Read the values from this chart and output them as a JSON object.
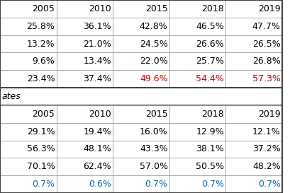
{
  "table1_header": [
    "2005",
    "2010",
    "2015",
    "2018",
    "2019"
  ],
  "table1_rows": [
    [
      "25.8%",
      "36.1%",
      "42.8%",
      "46.5%",
      "47.7%"
    ],
    [
      "13.2%",
      "21.0%",
      "24.5%",
      "26.6%",
      "26.5%"
    ],
    [
      "9.6%",
      "13.4%",
      "22.0%",
      "25.7%",
      "26.8%"
    ],
    [
      "23.4%",
      "37.4%",
      "49.6%",
      "54.4%",
      "57.3%"
    ]
  ],
  "table1_row4_red_cols": [
    2,
    3,
    4
  ],
  "section_label": "ates",
  "table2_header": [
    "2005",
    "2010",
    "2015",
    "2018",
    "2019"
  ],
  "table2_rows": [
    [
      "29.1%",
      "19.4%",
      "16.0%",
      "12.9%",
      "12.1%"
    ],
    [
      "56.3%",
      "48.1%",
      "43.3%",
      "38.1%",
      "37.2%"
    ],
    [
      "70.1%",
      "62.4%",
      "57.0%",
      "50.5%",
      "48.2%"
    ],
    [
      "0.7%",
      "0.6%",
      "0.7%",
      "0.7%",
      "0.7%"
    ]
  ],
  "red_color": "#cc0000",
  "blue_color": "#0070c0",
  "black_color": "#000000",
  "border_color": "#aaaaaa",
  "thick_border_color": "#444444",
  "font_size": 9,
  "header_font_size": 9
}
